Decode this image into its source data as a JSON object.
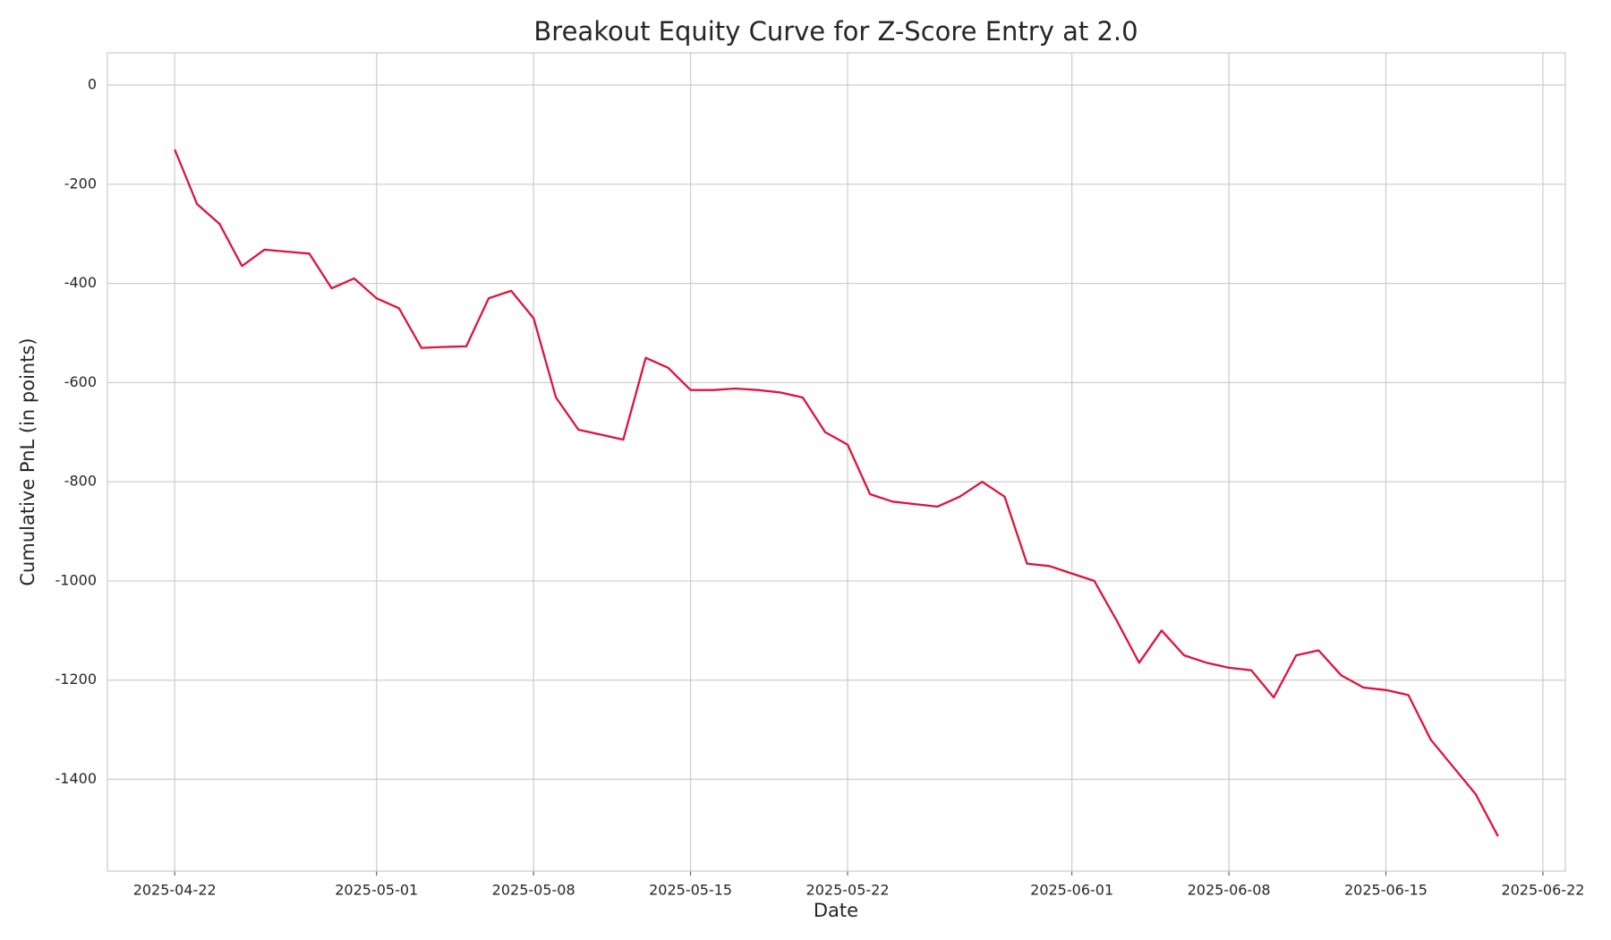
{
  "chart_data": {
    "type": "line",
    "title": "Breakout Equity Curve for Z-Score Entry at 2.0",
    "xlabel": "Date",
    "ylabel": "Cumulative PnL (in points)",
    "x": [
      "2025-04-22",
      "2025-04-23",
      "2025-04-24",
      "2025-04-25",
      "2025-04-26",
      "2025-04-27",
      "2025-04-28",
      "2025-04-29",
      "2025-04-30",
      "2025-05-01",
      "2025-05-02",
      "2025-05-03",
      "2025-05-04",
      "2025-05-05",
      "2025-05-06",
      "2025-05-07",
      "2025-05-08",
      "2025-05-09",
      "2025-05-10",
      "2025-05-11",
      "2025-05-12",
      "2025-05-13",
      "2025-05-14",
      "2025-05-15",
      "2025-05-16",
      "2025-05-17",
      "2025-05-18",
      "2025-05-19",
      "2025-05-20",
      "2025-05-21",
      "2025-05-22",
      "2025-05-23",
      "2025-05-24",
      "2025-05-25",
      "2025-05-26",
      "2025-05-27",
      "2025-05-28",
      "2025-05-29",
      "2025-05-30",
      "2025-05-31",
      "2025-06-01",
      "2025-06-02",
      "2025-06-03",
      "2025-06-04",
      "2025-06-05",
      "2025-06-06",
      "2025-06-07",
      "2025-06-08",
      "2025-06-09",
      "2025-06-10",
      "2025-06-11",
      "2025-06-12",
      "2025-06-13",
      "2025-06-14",
      "2025-06-15",
      "2025-06-16",
      "2025-06-17",
      "2025-06-18",
      "2025-06-19",
      "2025-06-20"
    ],
    "series": [
      {
        "name": "Cumulative PnL",
        "color": "#dc143c",
        "values": [
          -130,
          -240,
          -280,
          -365,
          -332,
          -336,
          -340,
          -410,
          -390,
          -430,
          -450,
          -530,
          -528,
          -527,
          -430,
          -415,
          -470,
          -630,
          -695,
          -705,
          -715,
          -550,
          -570,
          -615,
          -615,
          -612,
          -615,
          -620,
          -630,
          -700,
          -725,
          -825,
          -840,
          -845,
          -850,
          -830,
          -800,
          -830,
          -965,
          -970,
          -985,
          -1000,
          -1080,
          -1165,
          -1100,
          -1150,
          -1165,
          -1175,
          -1180,
          -1235,
          -1150,
          -1140,
          -1190,
          -1215,
          -1220,
          -1230,
          -1320,
          -1375,
          -1430,
          -1515
        ]
      }
    ],
    "xlim": [
      "2025-04-19",
      "2025-06-23"
    ],
    "xticks": [
      "2025-04-22",
      "2025-05-01",
      "2025-05-08",
      "2025-05-15",
      "2025-05-22",
      "2025-06-01",
      "2025-06-08",
      "2025-06-15",
      "2025-06-22"
    ],
    "ylim": [
      -1585,
      65
    ],
    "yticks": [
      0,
      -200,
      -400,
      -600,
      -800,
      -1000,
      -1200,
      -1400
    ],
    "grid": true
  }
}
